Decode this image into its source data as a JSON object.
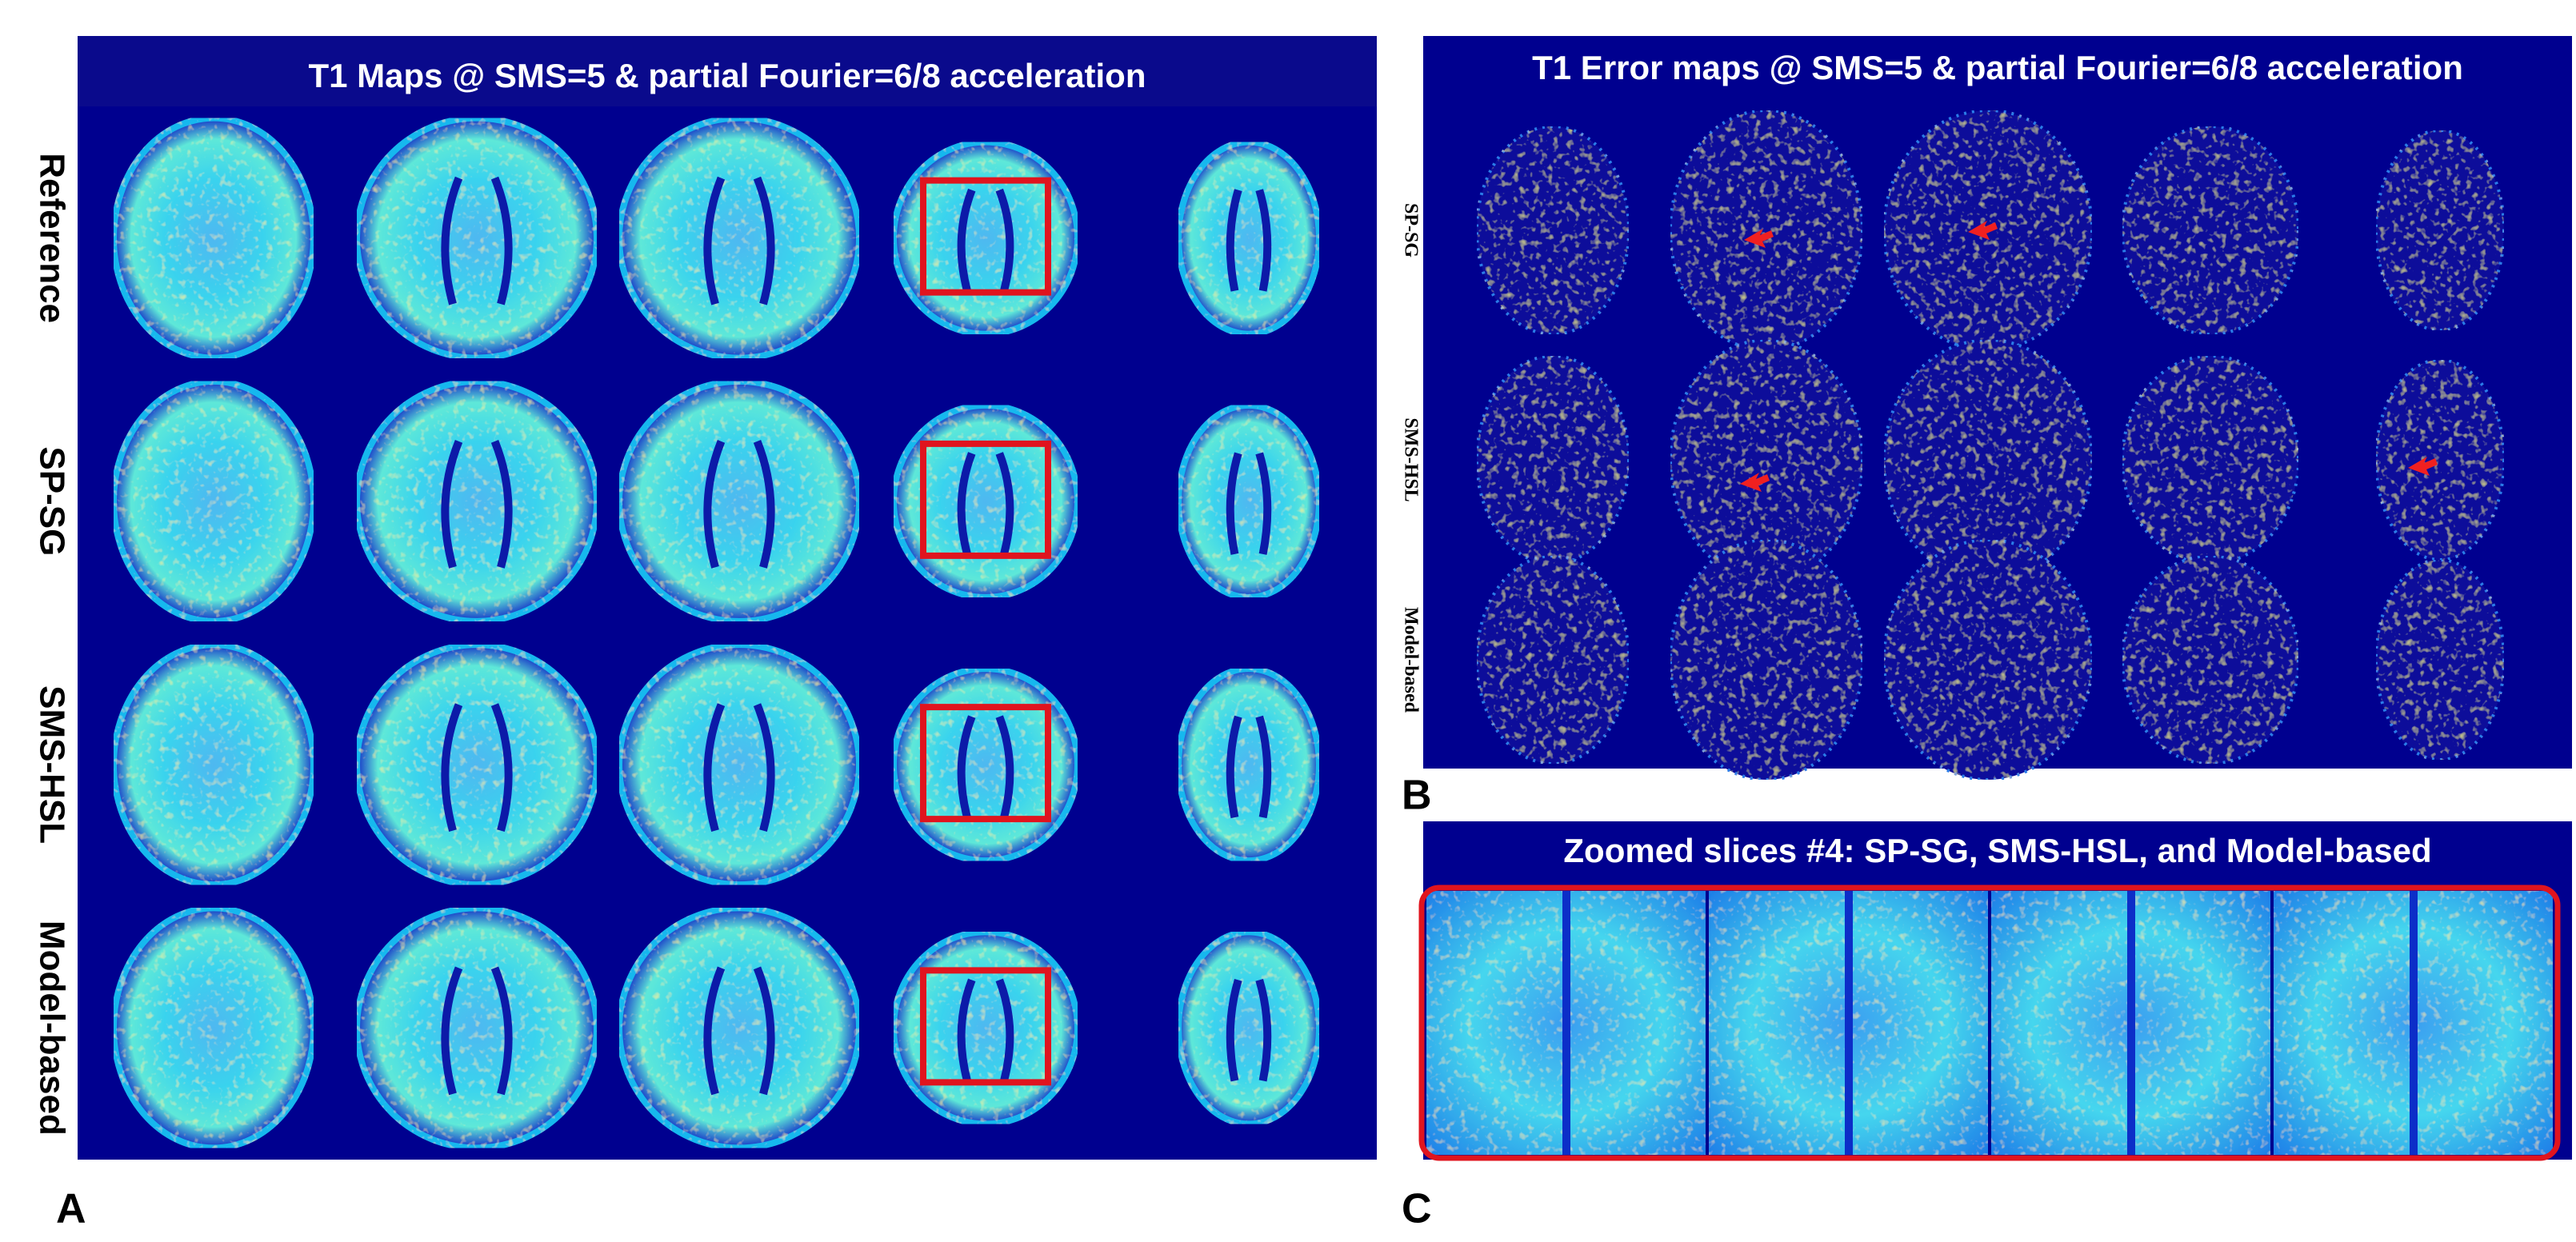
{
  "panel_a": {
    "label": "A",
    "title": "T1 Maps @ SMS=5 & partial Fourier=6/8 acceleration",
    "rows": [
      "Reference",
      "SP-SG",
      "SMS-HSL",
      "Model-based"
    ]
  },
  "panel_b": {
    "label": "B",
    "title": "T1 Error maps @ SMS=5 & partial Fourier=6/8 acceleration",
    "rows": [
      "SP-SG",
      "SMS-HSL",
      "Model-based"
    ]
  },
  "panel_c": {
    "label": "C",
    "title": "Zoomed slices #4:  SP-SG, SMS-HSL, and Model-based"
  }
}
